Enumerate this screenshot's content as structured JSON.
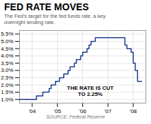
{
  "chart_data": {
    "type": "step",
    "title": "FED RATE MOVES",
    "subtitle": "The Fed's target for the fed funds rate, a key\novernight lending rate.",
    "source": "SOURCE: Federal Reserve",
    "annotations": [
      "THE RATE IS CUT",
      "TO 2.25%"
    ],
    "x": [
      2003.5,
      2004.0,
      2004.08,
      2004.17,
      2004.33,
      2004.42,
      2004.58,
      2004.67,
      2004.75,
      2004.83,
      2004.92,
      2005.0,
      2005.08,
      2005.17,
      2005.25,
      2005.33,
      2005.42,
      2005.5,
      2005.58,
      2005.67,
      2005.75,
      2005.83,
      2005.92,
      2006.0,
      2006.08,
      2006.17,
      2006.25,
      2006.33,
      2006.42,
      2006.5,
      2007.5,
      2007.67,
      2007.75,
      2007.83,
      2007.92,
      2008.0,
      2008.08,
      2008.17,
      2008.33
    ],
    "values": [
      1.0,
      1.0,
      1.0,
      1.25,
      1.25,
      1.5,
      1.5,
      1.75,
      2.0,
      2.0,
      2.25,
      2.25,
      2.5,
      2.5,
      2.75,
      2.75,
      3.0,
      3.25,
      3.25,
      3.5,
      3.75,
      3.75,
      4.0,
      4.25,
      4.25,
      4.5,
      4.75,
      5.0,
      5.0,
      5.25,
      5.25,
      4.75,
      4.5,
      4.5,
      4.25,
      3.5,
      3.0,
      2.25,
      2.25
    ],
    "color": "#1a3a8f",
    "xlim": [
      2003.5,
      2008.5
    ],
    "xticks": [
      {
        "value": 2004,
        "label": "'04"
      },
      {
        "value": 2005,
        "label": "'05"
      },
      {
        "value": 2006,
        "label": "'06"
      },
      {
        "value": 2007,
        "label": "'07"
      },
      {
        "value": 2008,
        "label": "'08"
      }
    ],
    "ylim": [
      0.75,
      5.75
    ],
    "yticks": [
      {
        "value": 1.0,
        "label": "1.0%"
      },
      {
        "value": 1.5,
        "label": "1.5%"
      },
      {
        "value": 2.0,
        "label": "2.0%"
      },
      {
        "value": 2.5,
        "label": "2.5%"
      },
      {
        "value": 3.0,
        "label": "3.0%"
      },
      {
        "value": 3.5,
        "label": "3.5%"
      },
      {
        "value": 4.0,
        "label": "4.0%"
      },
      {
        "value": 4.5,
        "label": "4.5%"
      },
      {
        "value": 5.0,
        "label": "5.0%"
      },
      {
        "value": 5.5,
        "label": "5.5%"
      }
    ],
    "grid": true
  }
}
